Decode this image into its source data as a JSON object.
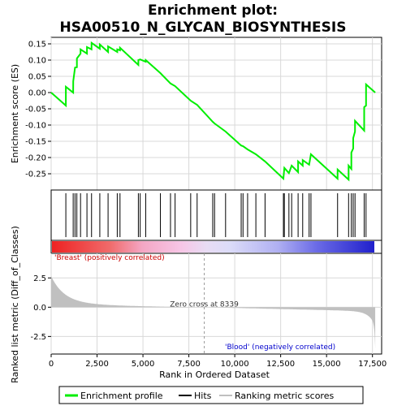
{
  "chart_data": {
    "type": "line",
    "title_line1": "Enrichment plot:",
    "title_line2": "HSA00510_N_GLYCAN_BIOSYNTHESIS",
    "es_ylabel": "Enrichment score (ES)",
    "rank_ylabel": "Ranked list metric (Diff_of_Classes)",
    "xlabel": "Rank in Ordered Dataset",
    "x_range": [
      0,
      18000
    ],
    "x_ticks": [
      0,
      2500,
      5000,
      7500,
      10000,
      12500,
      15000,
      17500
    ],
    "x_tick_labels": [
      "0",
      "2,500",
      "5,000",
      "7,500",
      "10,000",
      "12,500",
      "15,000",
      "17,500"
    ],
    "es_range": [
      -0.3,
      0.17
    ],
    "es_ticks": [
      0.15,
      0.1,
      0.05,
      0.0,
      -0.05,
      -0.1,
      -0.15,
      -0.2,
      -0.25
    ],
    "es_tick_labels": [
      "0.15",
      "0.10",
      "0.05",
      "0.00",
      "-0.05",
      "-0.10",
      "-0.15",
      "-0.20",
      "-0.25"
    ],
    "rank_range": [
      -4.0,
      4.6
    ],
    "rank_ticks": [
      2.5,
      0.0,
      -2.5
    ],
    "rank_tick_labels": [
      "2.5",
      "0.0",
      "-2.5"
    ],
    "hits": [
      800,
      1200,
      1300,
      1400,
      1600,
      1950,
      2200,
      2650,
      3100,
      3600,
      3750,
      4750,
      4850,
      5150,
      5950,
      6500,
      6750,
      7600,
      7950,
      8800,
      8900,
      9500,
      10350,
      10450,
      10700,
      11150,
      11650,
      12650,
      12700,
      12950,
      13100,
      13450,
      13700,
      14050,
      14150,
      15600,
      16200,
      16350,
      16450,
      16550,
      17050,
      17150
    ],
    "es_profile": [
      [
        0,
        0.0
      ],
      [
        800,
        -0.04
      ],
      [
        801,
        0.018
      ],
      [
        1200,
        0.0
      ],
      [
        1201,
        0.035
      ],
      [
        1300,
        0.077
      ],
      [
        1400,
        0.078
      ],
      [
        1401,
        0.105
      ],
      [
        1600,
        0.12
      ],
      [
        1601,
        0.133
      ],
      [
        1950,
        0.12
      ],
      [
        1951,
        0.14
      ],
      [
        2200,
        0.133
      ],
      [
        2201,
        0.153
      ],
      [
        2650,
        0.135
      ],
      [
        2651,
        0.148
      ],
      [
        3100,
        0.125
      ],
      [
        3101,
        0.142
      ],
      [
        3600,
        0.125
      ],
      [
        3601,
        0.133
      ],
      [
        3750,
        0.13
      ],
      [
        3751,
        0.138
      ],
      [
        4750,
        0.085
      ],
      [
        4751,
        0.1
      ],
      [
        4850,
        0.102
      ],
      [
        5150,
        0.095
      ],
      [
        5151,
        0.1
      ],
      [
        5950,
        0.06
      ],
      [
        6500,
        0.028
      ],
      [
        6750,
        0.02
      ],
      [
        7600,
        -0.025
      ],
      [
        7950,
        -0.038
      ],
      [
        8800,
        -0.09
      ],
      [
        8900,
        -0.095
      ],
      [
        9500,
        -0.12
      ],
      [
        10350,
        -0.163
      ],
      [
        10450,
        -0.165
      ],
      [
        10700,
        -0.175
      ],
      [
        11150,
        -0.19
      ],
      [
        11650,
        -0.212
      ],
      [
        12650,
        -0.265
      ],
      [
        12700,
        -0.232
      ],
      [
        12950,
        -0.248
      ],
      [
        13100,
        -0.225
      ],
      [
        13450,
        -0.245
      ],
      [
        13451,
        -0.212
      ],
      [
        13700,
        -0.225
      ],
      [
        13701,
        -0.208
      ],
      [
        14050,
        -0.222
      ],
      [
        14150,
        -0.19
      ],
      [
        15600,
        -0.265
      ],
      [
        15601,
        -0.237
      ],
      [
        16200,
        -0.268
      ],
      [
        16201,
        -0.225
      ],
      [
        16350,
        -0.235
      ],
      [
        16351,
        -0.185
      ],
      [
        16450,
        -0.172
      ],
      [
        16451,
        -0.14
      ],
      [
        16550,
        -0.12
      ],
      [
        16551,
        -0.087
      ],
      [
        17050,
        -0.117
      ],
      [
        17051,
        -0.045
      ],
      [
        17150,
        -0.04
      ],
      [
        17151,
        0.025
      ],
      [
        17650,
        0.0
      ]
    ],
    "zero_cross_rank": 8339,
    "zero_cross_label": "Zero cross at 8339",
    "left_class_label": "'Breast' (positively correlated)",
    "right_class_label": "'Blood' (negatively correlated)",
    "legend": [
      "Enrichment profile",
      "Hits",
      "Ranking metric scores"
    ],
    "colors": {
      "es_line": "#00ee00",
      "hit": "#000000",
      "metric": "#c0c0c0",
      "pos_label": "#cc0000",
      "neg_label": "#0000cc",
      "grid": "#d8d8d8"
    }
  }
}
